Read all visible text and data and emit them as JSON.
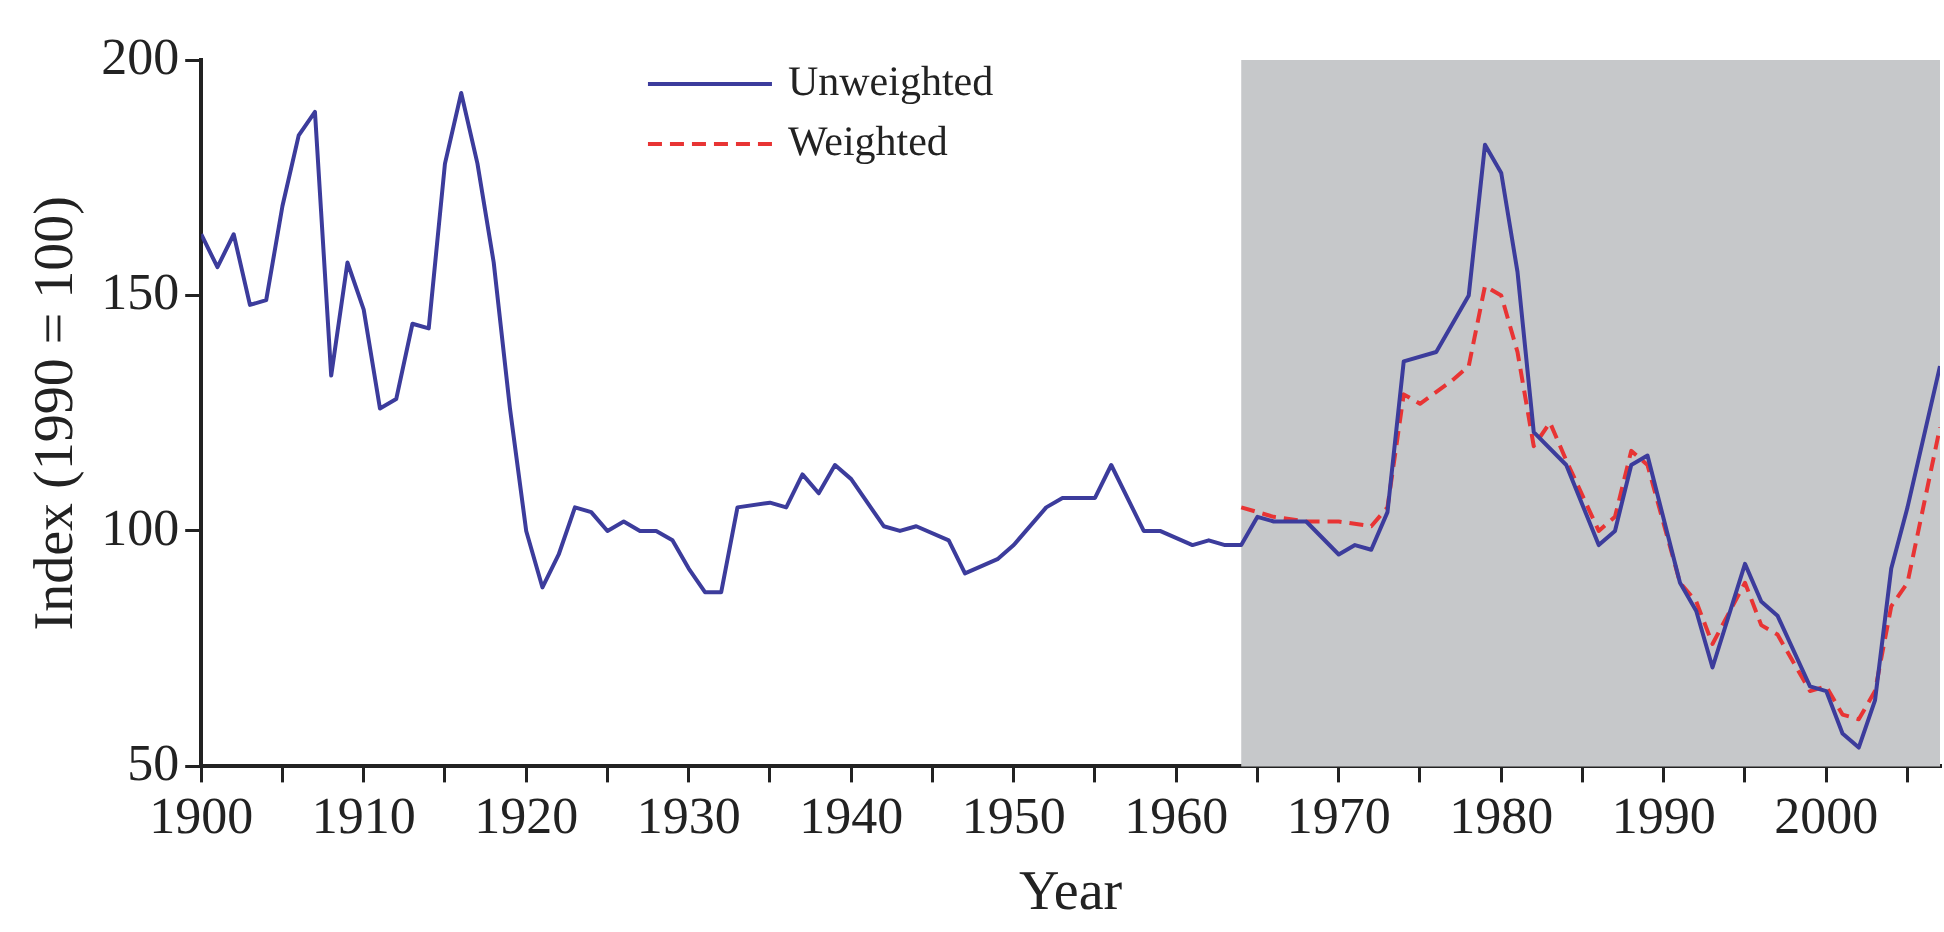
{
  "chart_data": {
    "type": "line",
    "xlabel": "Year",
    "ylabel": "Index (1990 = 100)",
    "xlim": [
      1900,
      2007
    ],
    "xticks": [
      1900,
      {
        "value": 1905,
        "label": null
      },
      1910,
      {
        "value": 1915,
        "label": null
      },
      1920,
      {
        "value": 1925,
        "label": null
      },
      1930,
      {
        "value": 1935,
        "label": null
      },
      1940,
      {
        "value": 1945,
        "label": null
      },
      1950,
      {
        "value": 1955,
        "label": null
      },
      1960,
      {
        "value": 1965,
        "label": null
      },
      1970,
      {
        "value": 1975,
        "label": null
      },
      1980,
      {
        "value": 1985,
        "label": null
      },
      1990,
      {
        "value": 1995,
        "label": null
      },
      2000,
      {
        "value": 2005,
        "label": null
      }
    ],
    "ylim": [
      50,
      200
    ],
    "yticks": [
      50,
      100,
      150,
      200
    ],
    "legend": "top",
    "marker": "none",
    "bands": [
      {
        "axis": "x",
        "from": 1964,
        "to": 2007,
        "color": "#c6c8ca"
      }
    ],
    "series": [
      {
        "name": "Unweighted",
        "color": "#3c3c9c",
        "line_style": "solid",
        "x": [
          1900,
          1901,
          1902,
          1903,
          1904,
          1905,
          1906,
          1907,
          1908,
          1909,
          1910,
          1911,
          1912,
          1913,
          1914,
          1915,
          1916,
          1917,
          1918,
          1919,
          1920,
          1921,
          1922,
          1923,
          1924,
          1925,
          1926,
          1927,
          1928,
          1929,
          1930,
          1931,
          1932,
          1933,
          1935,
          1936,
          1937,
          1938,
          1939,
          1940,
          1942,
          1943,
          1944,
          1946,
          1947,
          1949,
          1950,
          1952,
          1953,
          1955,
          1956,
          1958,
          1959,
          1961,
          1962,
          1963,
          1964,
          1965,
          1966,
          1968,
          1970,
          1971,
          1972,
          1973,
          1974,
          1976,
          1977,
          1978,
          1979,
          1980,
          1981,
          1982,
          1984,
          1986,
          1987,
          1988,
          1989,
          1991,
          1992,
          1993,
          1995,
          1996,
          1997,
          1999,
          2000,
          2001,
          2002,
          2003,
          2004,
          2005,
          2007
        ],
        "values": [
          163,
          156,
          163,
          148,
          149,
          169,
          184,
          189,
          133,
          157,
          147,
          126,
          128,
          144,
          143,
          178,
          193,
          178,
          157,
          126,
          100,
          88,
          95,
          105,
          104,
          100,
          102,
          100,
          100,
          98,
          92,
          87,
          87,
          105,
          106,
          105,
          112,
          108,
          114,
          111,
          101,
          100,
          101,
          98,
          91,
          94,
          97,
          105,
          107,
          107,
          114,
          100,
          100,
          97,
          98,
          97,
          97,
          103,
          102,
          102,
          95,
          97,
          96,
          104,
          136,
          138,
          144,
          150,
          182,
          176,
          155,
          121,
          114,
          97,
          100,
          114,
          116,
          89,
          83,
          71,
          93,
          85,
          82,
          67,
          66,
          57,
          54,
          64,
          92,
          105,
          135
        ]
      },
      {
        "name": "Weighted",
        "color": "#e83434",
        "line_style": "dashed",
        "x": [
          1964,
          1966,
          1968,
          1970,
          1972,
          1973,
          1974,
          1975,
          1977,
          1978,
          1979,
          1980,
          1981,
          1982,
          1983,
          1984,
          1986,
          1987,
          1988,
          1989,
          1991,
          1992,
          1993,
          1995,
          1996,
          1997,
          1999,
          2000,
          2001,
          2002,
          2003,
          2004,
          2005,
          2007
        ],
        "values": [
          105,
          103,
          102,
          102,
          101,
          105,
          129,
          127,
          132,
          135,
          152,
          150,
          138,
          118,
          123,
          115,
          100,
          103,
          117,
          114,
          89,
          85,
          76,
          89,
          80,
          78,
          66,
          67,
          61,
          60,
          66,
          84,
          89,
          122
        ]
      }
    ]
  }
}
